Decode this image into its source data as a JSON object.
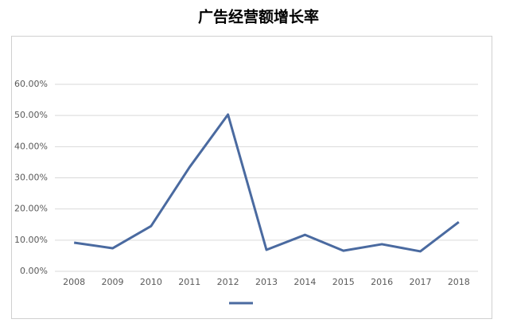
{
  "chart_data": {
    "type": "line",
    "title": "广告经营额增长率",
    "categories": [
      "2008",
      "2009",
      "2010",
      "2011",
      "2012",
      "2013",
      "2014",
      "2015",
      "2016",
      "2017",
      "2018"
    ],
    "values": [
      9.2,
      7.4,
      14.5,
      33.4,
      50.3,
      6.9,
      11.7,
      6.6,
      8.7,
      6.4,
      15.8
    ],
    "color": "#4a6aa0",
    "ylim": [
      0,
      60
    ],
    "yticks": [
      {
        "value": 0,
        "label": "0.00%"
      },
      {
        "value": 10,
        "label": "10.00%"
      },
      {
        "value": 20,
        "label": "20.00%"
      },
      {
        "value": 30,
        "label": "30.00%"
      },
      {
        "value": 40,
        "label": "40.00%"
      },
      {
        "value": 50,
        "label": "50.00%"
      },
      {
        "value": 60,
        "label": "60.00%"
      }
    ],
    "grid": true
  }
}
